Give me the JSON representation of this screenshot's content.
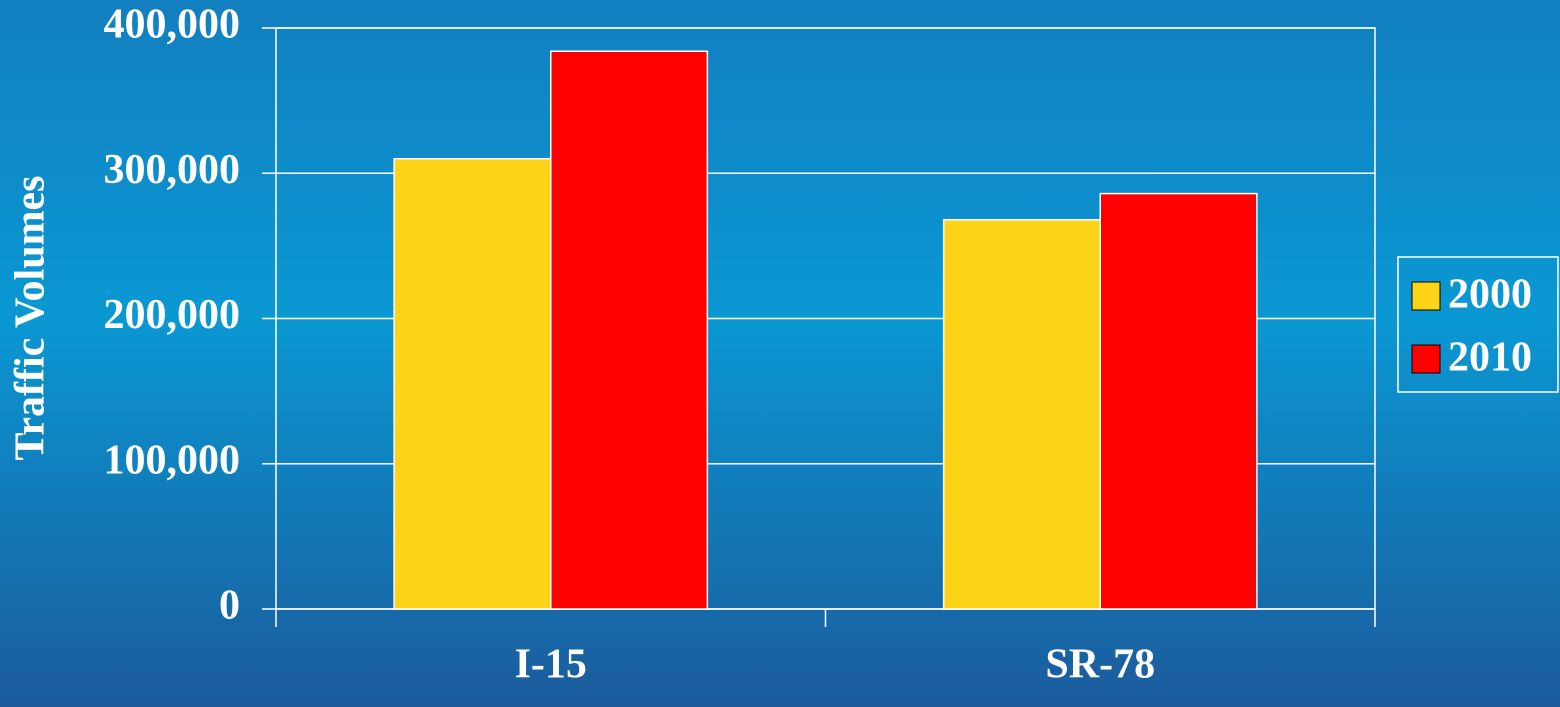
{
  "chart_data": {
    "type": "bar",
    "y_label": "Traffic Volumes",
    "categories": [
      "I-15",
      "SR-78"
    ],
    "series": [
      {
        "name": "2000",
        "color": "#fdd418",
        "values": [
          310000,
          268000
        ]
      },
      {
        "name": "2010",
        "color": "#ff0000",
        "values": [
          384000,
          286000
        ]
      }
    ],
    "ylim": [
      0,
      400000
    ],
    "yticks": [
      0,
      {
        "value": 100000,
        "label": "100,000"
      },
      {
        "value": 200000,
        "label": "200,000"
      },
      {
        "value": 300000,
        "label": "300,000"
      },
      {
        "value": 400000,
        "label": "400,000"
      }
    ],
    "grid": true,
    "legend": "right"
  }
}
